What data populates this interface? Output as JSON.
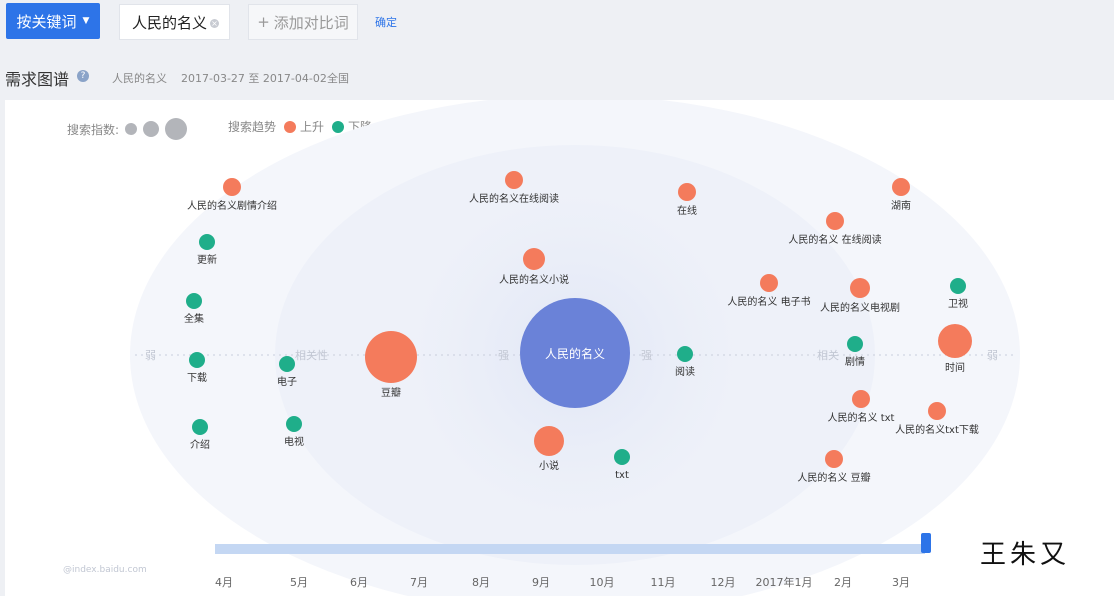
{
  "toolbar": {
    "keyword_button": "按关键词",
    "keyword_tag": "人民的名义",
    "add_compare": "添加对比词",
    "confirm": "确定"
  },
  "header": {
    "title": "需求图谱",
    "keyword": "人民的名义",
    "date_range": "2017-03-27 至 2017-04-02",
    "region": "全国"
  },
  "legend": {
    "search_index_label": "搜索指数:",
    "trend_label": "搜索趋势",
    "up_label": "上升",
    "down_label": "下降"
  },
  "colors": {
    "up": "#f47b5c",
    "down": "#1fae8a",
    "center": "#6a82d8",
    "accent": "#2d74e8"
  },
  "graph": {
    "center_label": "人民的名义",
    "axis_labels": {
      "strong_left": "强",
      "strong_right": "强",
      "weak_left": "弱",
      "weak_right": "弱",
      "relevance_left": "相关性",
      "relevance_right": "相关"
    },
    "bubbles": [
      {
        "label": "人民的名义剧情介绍",
        "trend": "up"
      },
      {
        "label": "更新",
        "trend": "down"
      },
      {
        "label": "全集",
        "trend": "down"
      },
      {
        "label": "下载",
        "trend": "down"
      },
      {
        "label": "介绍",
        "trend": "down"
      },
      {
        "label": "电子",
        "trend": "down"
      },
      {
        "label": "电视",
        "trend": "down"
      },
      {
        "label": "豆瓣",
        "trend": "up"
      },
      {
        "label": "人民的名义在线阅读",
        "trend": "up"
      },
      {
        "label": "人民的名义小说",
        "trend": "up"
      },
      {
        "label": "小说",
        "trend": "up"
      },
      {
        "label": "txt",
        "trend": "down"
      },
      {
        "label": "在线",
        "trend": "up"
      },
      {
        "label": "阅读",
        "trend": "down"
      },
      {
        "label": "湖南",
        "trend": "up"
      },
      {
        "label": "人民的名义 在线阅读",
        "trend": "up"
      },
      {
        "label": "人民的名义 电子书",
        "trend": "up"
      },
      {
        "label": "人民的名义电视剧",
        "trend": "up"
      },
      {
        "label": "卫视",
        "trend": "down"
      },
      {
        "label": "剧情",
        "trend": "down"
      },
      {
        "label": "时间",
        "trend": "up"
      },
      {
        "label": "人民的名义 txt",
        "trend": "up"
      },
      {
        "label": "人民的名义txt下载",
        "trend": "up"
      },
      {
        "label": "人民的名义 豆瓣",
        "trend": "up"
      }
    ]
  },
  "timeline": {
    "months": [
      "4月",
      "5月",
      "6月",
      "7月",
      "8月",
      "9月",
      "10月",
      "11月",
      "12月",
      "2017年1月",
      "2月",
      "3月"
    ],
    "source": "@index.baidu.com"
  },
  "watermark": "王朱又"
}
